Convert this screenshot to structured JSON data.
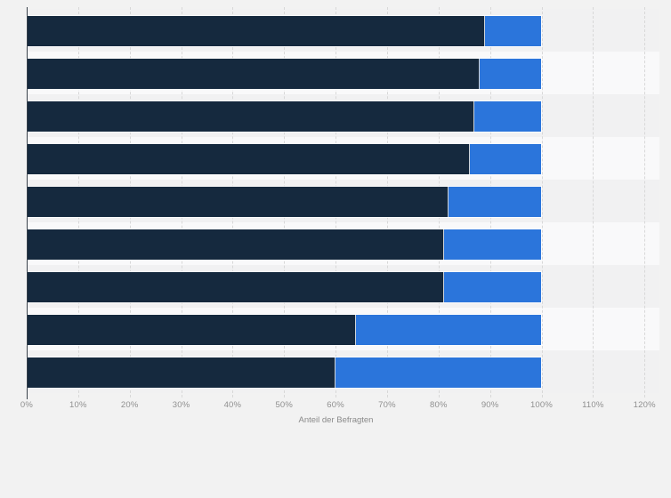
{
  "chart_data": {
    "type": "bar",
    "orientation": "horizontal",
    "stacked": true,
    "title": "",
    "xlabel": "Anteil der Befragten",
    "ylabel": "",
    "xlim": [
      0,
      120
    ],
    "x_tick_step": 10,
    "x_ticks": [
      "0%",
      "10%",
      "20%",
      "30%",
      "40%",
      "50%",
      "60%",
      "70%",
      "80%",
      "90%",
      "100%",
      "110%",
      "120%"
    ],
    "grid": "dashed-vertical",
    "legend": "none",
    "categories": [
      "",
      "",
      "",
      "",
      "",
      "",
      "",
      "",
      ""
    ],
    "series": [
      {
        "name": "",
        "color": "#15293E",
        "values": [
          89,
          88,
          87,
          86,
          82,
          81,
          81,
          64,
          60
        ]
      },
      {
        "name": "",
        "color": "#2B75DB",
        "values": [
          11,
          12,
          13,
          14,
          18,
          19,
          19,
          36,
          40
        ]
      }
    ]
  },
  "style_colors": {
    "page_background": "#f2f2f2",
    "band_even": "#f1f1f2",
    "band_odd": "#f9f9fa",
    "gridline": "#d8d8d8",
    "axis_line": "#3a424b",
    "tick_text": "#8f8f8f",
    "axis_title_text": "#8a8a8a"
  }
}
